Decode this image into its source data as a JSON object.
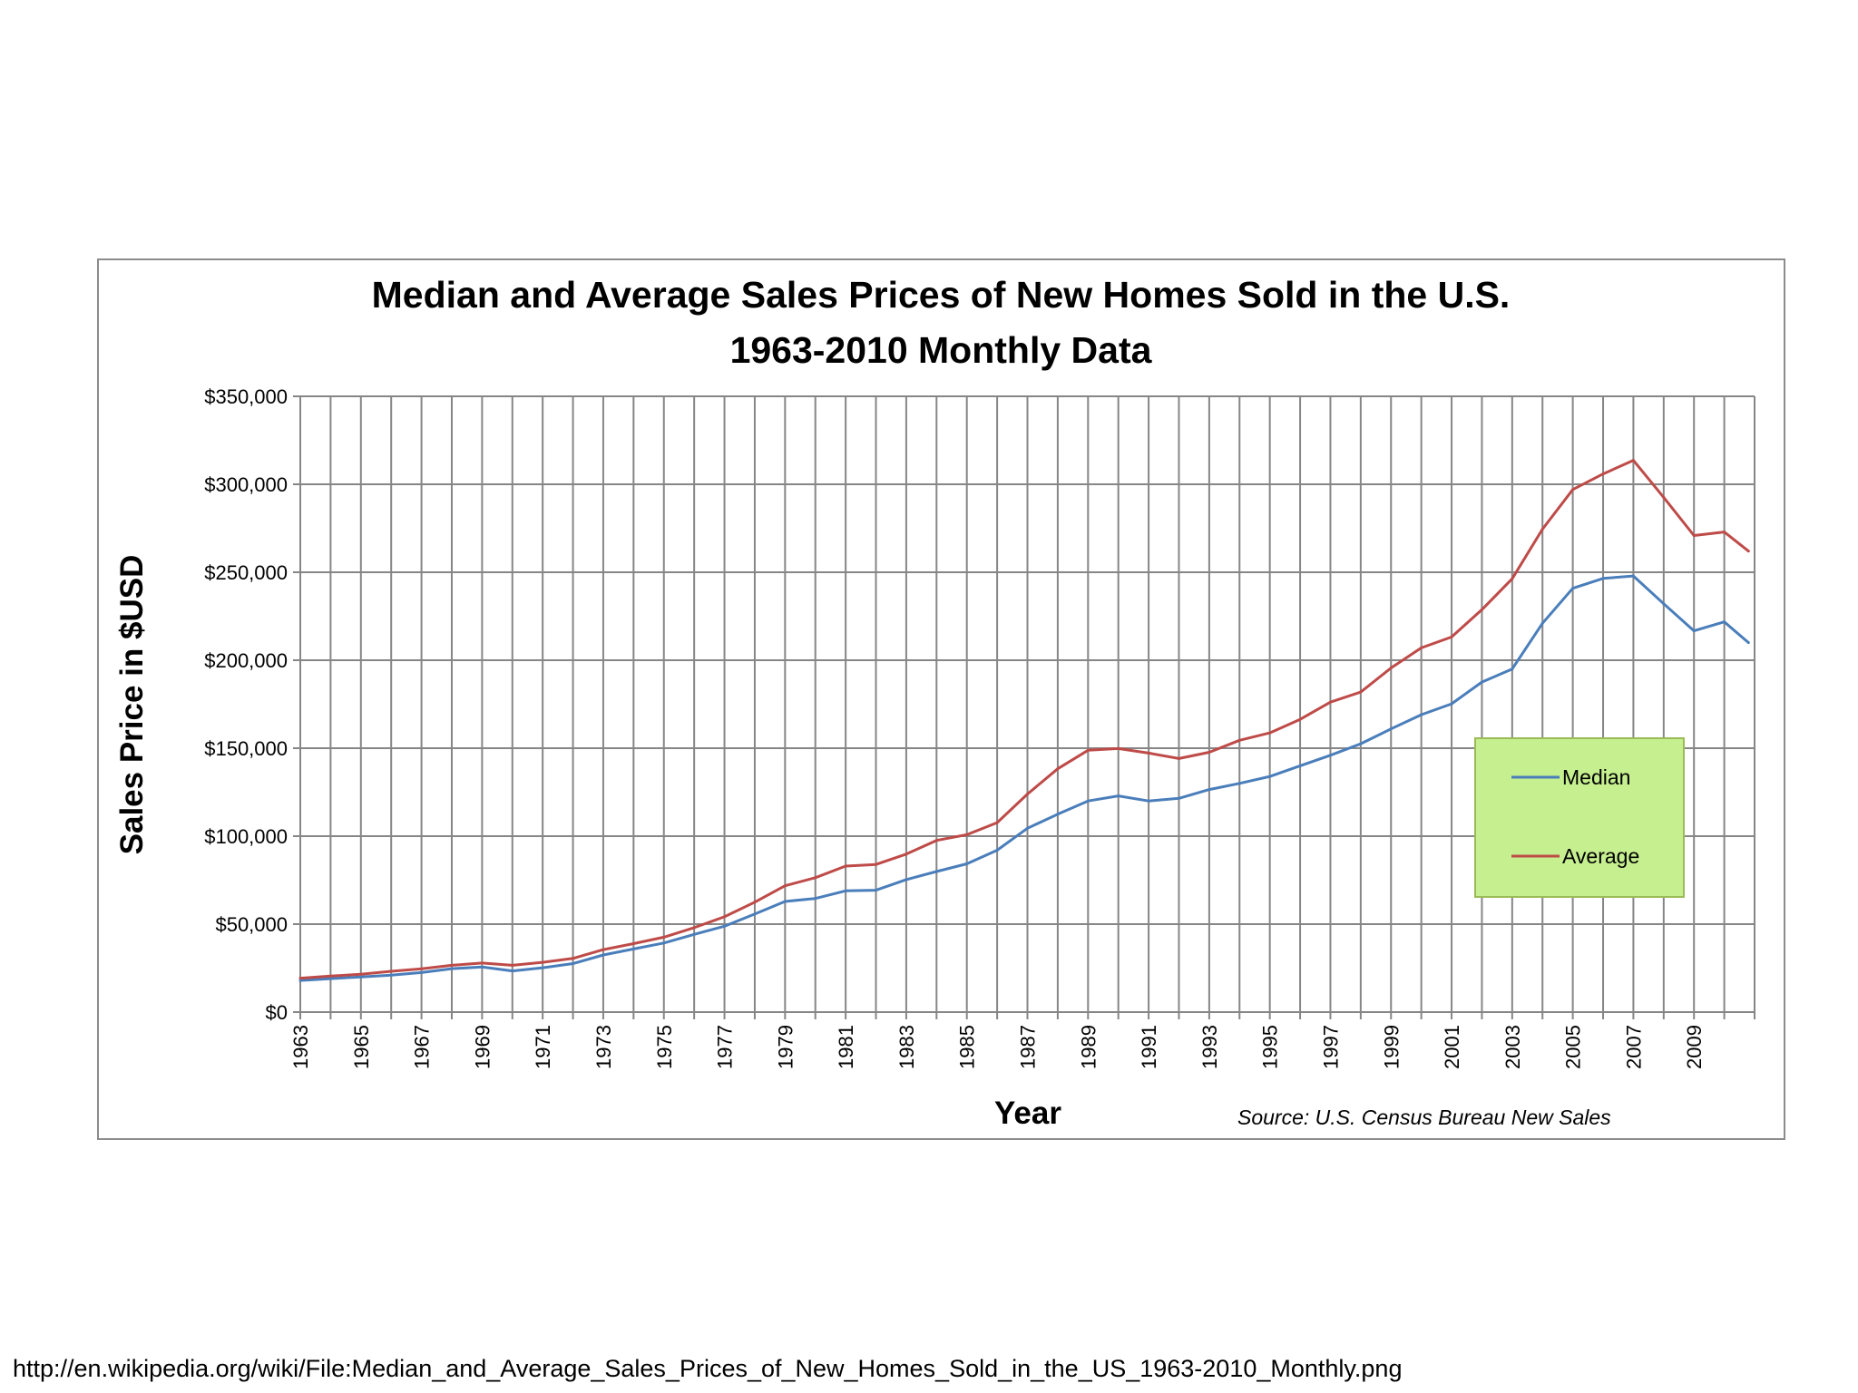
{
  "colors": {
    "median": "#4a7ebb",
    "average": "#be4b48",
    "grid": "#868686",
    "legend_fill": "#c6ef8f",
    "legend_border": "#9bbb59"
  },
  "footer": {
    "url": "http://en.wikipedia.org/wiki/File:Median_and_Average_Sales_Prices_of_New_Homes_Sold_in_the_US_1963-2010_Monthly.png"
  },
  "chart_data": {
    "type": "line",
    "title": "Median and Average Sales Prices of New Homes Sold in the U.S.",
    "subtitle": "1963-2010 Monthly Data",
    "xlabel": "Year",
    "ylabel": "Sales Price in $USD",
    "source": "Source:  U.S. Census Bureau New Sales",
    "x_ticks": [
      "1963",
      "1965",
      "1967",
      "1969",
      "1971",
      "1973",
      "1975",
      "1977",
      "1979",
      "1981",
      "1983",
      "1985",
      "1987",
      "1989",
      "1991",
      "1993",
      "1995",
      "1997",
      "1999",
      "2001",
      "2003",
      "2005",
      "2007",
      "2009"
    ],
    "y_ticks": [
      "$0",
      "$50,000",
      "$100,000",
      "$150,000",
      "$200,000",
      "$250,000",
      "$300,000",
      "$350,000"
    ],
    "xlim": [
      1963,
      2011
    ],
    "ylim": [
      0,
      350000
    ],
    "grid": true,
    "legend_position": "right",
    "x": [
      1963,
      1964,
      1965,
      1966,
      1967,
      1968,
      1969,
      1970,
      1971,
      1972,
      1973,
      1974,
      1975,
      1976,
      1977,
      1978,
      1979,
      1980,
      1981,
      1982,
      1983,
      1984,
      1985,
      1986,
      1987,
      1988,
      1989,
      1990,
      1991,
      1992,
      1993,
      1994,
      1995,
      1996,
      1997,
      1998,
      1999,
      2000,
      2001,
      2002,
      2003,
      2004,
      2005,
      2006,
      2007,
      2008,
      2009,
      2010,
      2010.8
    ],
    "series": [
      {
        "name": "Median",
        "color": "#4a7ebb",
        "values": [
          18000,
          19000,
          20000,
          21000,
          22500,
          24700,
          25600,
          23400,
          25200,
          27600,
          32500,
          35900,
          39300,
          44200,
          48800,
          55700,
          62900,
          64600,
          68900,
          69300,
          75300,
          79900,
          84300,
          92000,
          104500,
          112500,
          120000,
          122900,
          120000,
          121500,
          126500,
          130000,
          133900,
          140000,
          146000,
          152500,
          161000,
          169000,
          175200,
          187600,
          195000,
          221000,
          240900,
          246500,
          247900,
          232100,
          216700,
          221800,
          210000
        ]
      },
      {
        "name": "Average",
        "color": "#be4b48",
        "values": [
          19300,
          20500,
          21500,
          23200,
          24600,
          26600,
          27900,
          26600,
          28300,
          30500,
          35500,
          38900,
          42600,
          48000,
          54200,
          62500,
          71800,
          76400,
          83000,
          83900,
          89800,
          97600,
          100800,
          107700,
          123900,
          138300,
          148800,
          149800,
          147200,
          144100,
          147700,
          154500,
          158700,
          166400,
          176200,
          181900,
          195600,
          207000,
          213200,
          228700,
          246300,
          274500,
          297000,
          305900,
          313600,
          292600,
          270900,
          272900,
          262000
        ]
      }
    ]
  }
}
